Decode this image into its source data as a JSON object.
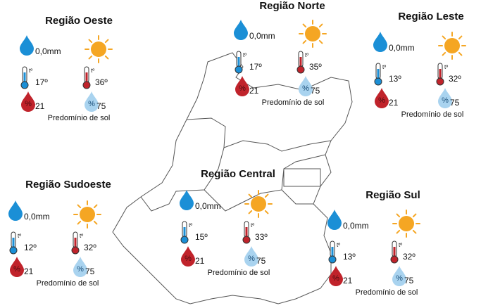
{
  "icon_labels": {
    "thermometer": "tº",
    "humidity": "%"
  },
  "regions": [
    {
      "name": "Região Oeste",
      "rain": "0,0mm",
      "temp_min": "17º",
      "temp_max": "36º",
      "humidity_min": "21",
      "humidity_max": "75",
      "condition": "Predomínio de sol"
    },
    {
      "name": "Região Norte",
      "rain": "0,0mm",
      "temp_min": "17º",
      "temp_max": "35º",
      "humidity_min": "21",
      "humidity_max": "75",
      "condition": "Predomínio de sol"
    },
    {
      "name": "Região Leste",
      "rain": "0,0mm",
      "temp_min": "13º",
      "temp_max": "32º",
      "humidity_min": "21",
      "humidity_max": "75",
      "condition": "Predomínio de sol"
    },
    {
      "name": "Região Sudoeste",
      "rain": "0,0mm",
      "temp_min": "12º",
      "temp_max": "32º",
      "humidity_min": "21",
      "humidity_max": "75",
      "condition": "Predomínio de sol"
    },
    {
      "name": "Região Central",
      "rain": "0,0mm",
      "temp_min": "15º",
      "temp_max": "33º",
      "humidity_min": "21",
      "humidity_max": "75",
      "condition": "Predomínio de sol"
    },
    {
      "name": "Região Sul",
      "rain": "0,0mm",
      "temp_min": "13º",
      "temp_max": "32º",
      "humidity_min": "21",
      "humidity_max": "75",
      "condition": "Predomínio de sol"
    }
  ]
}
